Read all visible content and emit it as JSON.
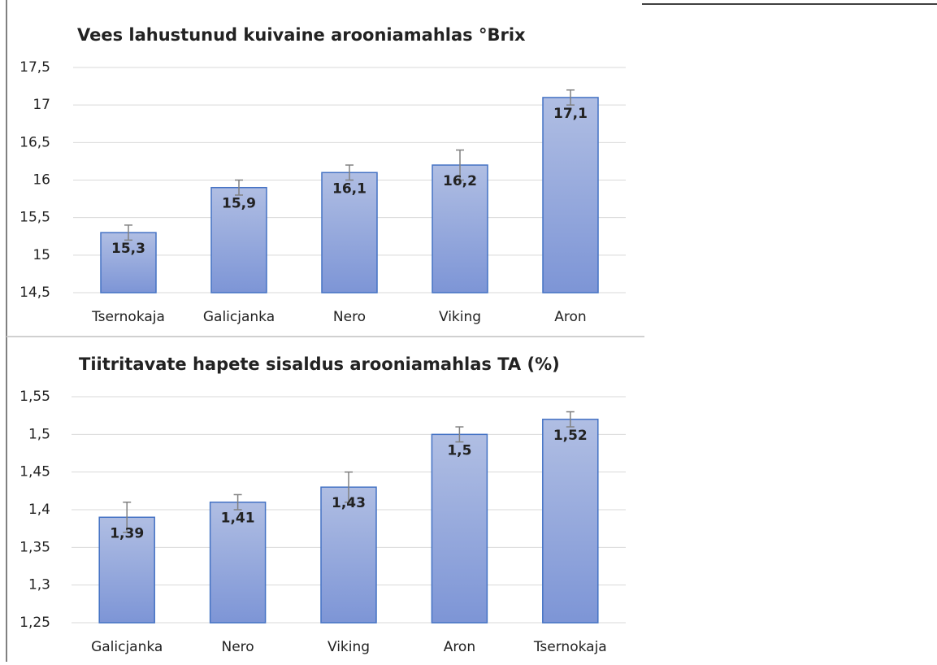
{
  "chart_data": [
    {
      "type": "bar",
      "title": "Vees lahustunud kuivaine  arooniamahlas °Brix",
      "categories": [
        "Tsernokaja",
        "Galicjanka",
        "Nero",
        "Viking",
        "Aron"
      ],
      "values": [
        15.3,
        15.9,
        16.1,
        16.2,
        17.1
      ],
      "value_labels": [
        "15,3",
        "15,9",
        "16,1",
        "16,2",
        "17,1"
      ],
      "errors": [
        0.1,
        0.1,
        0.1,
        0.2,
        0.1
      ],
      "color": "#8fa5dc",
      "ylim": [
        14.5,
        17.5
      ],
      "yticks": [
        {
          "value": 14.5,
          "label": "14,5"
        },
        15,
        {
          "value": 15.5,
          "label": "15,5"
        },
        16,
        {
          "value": 16.5,
          "label": "16,5"
        },
        17,
        {
          "value": 17.5,
          "label": "17,5"
        }
      ],
      "grid": true
    },
    {
      "type": "bar",
      "title": "Tiitritavate hapete sisaldus arooniamahlas TA (%)",
      "categories": [
        "Galicjanka",
        "Nero",
        "Viking",
        "Aron",
        "Tsernokaja"
      ],
      "values": [
        1.39,
        1.41,
        1.43,
        1.5,
        1.52
      ],
      "value_labels": [
        "1,39",
        "1,41",
        "1,43",
        "1,5",
        "1,52"
      ],
      "errors": [
        0.02,
        0.01,
        0.02,
        0.01,
        0.01
      ],
      "color": "#8fa5dc",
      "ylim": [
        1.25,
        1.55
      ],
      "yticks": [
        {
          "value": 1.25,
          "label": "1,25"
        },
        {
          "value": 1.3,
          "label": "1,3"
        },
        {
          "value": 1.35,
          "label": "1,35"
        },
        {
          "value": 1.4,
          "label": "1,4"
        },
        {
          "value": 1.45,
          "label": "1,45"
        },
        {
          "value": 1.5,
          "label": "1,5"
        },
        {
          "value": 1.55,
          "label": "1,55"
        }
      ],
      "grid": true
    }
  ]
}
